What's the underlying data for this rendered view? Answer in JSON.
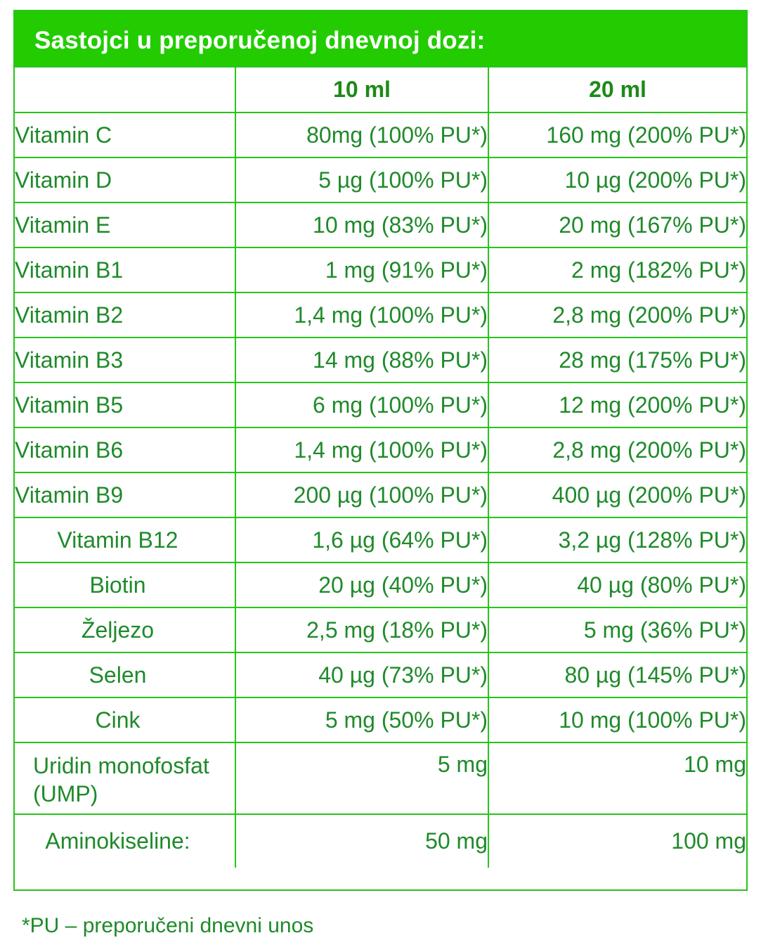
{
  "title": "Sastojci u preporučenoj dnevnoj dozi:",
  "columns": [
    "",
    "10 ml",
    "20 ml"
  ],
  "rows": [
    {
      "name": "Vitamin C",
      "v10": "80mg (100% PU*)",
      "v20": "160 mg  (200% PU*)"
    },
    {
      "name": "Vitamin D",
      "v10": "5 µg (100% PU*)",
      "v20": "10 µg (200% PU*)"
    },
    {
      "name": "Vitamin E",
      "v10": "10 mg (83% PU*)",
      "v20": "20 mg (167% PU*)"
    },
    {
      "name": "Vitamin B1",
      "v10": "1 mg (91% PU*)",
      "v20": "2 mg (182% PU*)"
    },
    {
      "name": "Vitamin B2",
      "v10": "1,4 mg (100% PU*)",
      "v20": "2,8 mg (200% PU*)"
    },
    {
      "name": "Vitamin B3",
      "v10": "14 mg (88% PU*)",
      "v20": "28 mg (175% PU*)"
    },
    {
      "name": "Vitamin B5",
      "v10": "6 mg (100% PU*)",
      "v20": "12 mg (200% PU*)"
    },
    {
      "name": "Vitamin B6",
      "v10": "1,4 mg (100% PU*)",
      "v20": "2,8 mg (200% PU*)"
    },
    {
      "name": "Vitamin B9",
      "v10": "200 µg (100% PU*)",
      "v20": "400 µg (200% PU*)"
    },
    {
      "name": "Vitamin B12",
      "v10": "1,6 µg (64% PU*)",
      "v20": "3,2 µg (128% PU*)"
    },
    {
      "name": "Biotin",
      "v10": "20 µg (40% PU*)",
      "v20": "40 µg (80% PU*)"
    },
    {
      "name": "Željezo",
      "v10": "2,5 mg (18% PU*)",
      "v20": "5 mg (36% PU*)"
    },
    {
      "name": "Selen",
      "v10": "40 µg (73% PU*)",
      "v20": "80 µg (145% PU*)"
    },
    {
      "name": "Cink",
      "v10": "5 mg (50% PU*)",
      "v20": "10 mg (100% PU*)"
    },
    {
      "name": "Uridin monofosfat (UMP)",
      "v10": "5 mg",
      "v20": "10 mg"
    },
    {
      "name": "Aminokiseline:",
      "v10": "50 mg",
      "v20": "100 mg"
    }
  ],
  "footnote": "*PU – preporučeni dnevni unos",
  "colors": {
    "header_bg": "#22cc00",
    "header_text": "#ffffff",
    "border": "#27c41a",
    "text": "#1f8a2a"
  }
}
